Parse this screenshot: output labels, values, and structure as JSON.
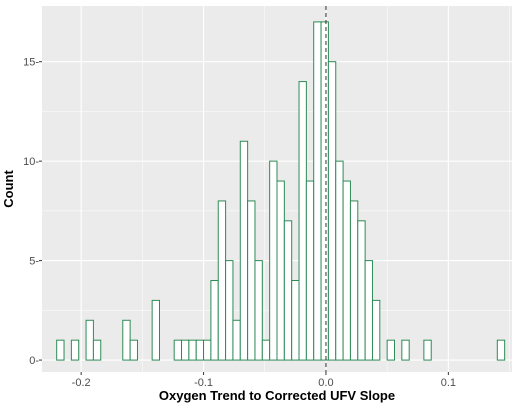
{
  "chart_data": {
    "type": "bar",
    "subtype": "histogram",
    "xlabel": "Oxygen Trend to Corrected UFV Slope",
    "ylabel": "Count",
    "xlim": [
      -0.232,
      0.152
    ],
    "ylim": [
      -0.6,
      17.8
    ],
    "x_ticks": [
      -0.2,
      -0.1,
      0.0,
      0.1
    ],
    "x_tick_labels": [
      "-0.2",
      "-0.1",
      "0.0",
      "0.1"
    ],
    "y_ticks": [
      0,
      5,
      10,
      15
    ],
    "y_tick_labels": [
      "0-",
      "5-",
      "10-",
      "15-"
    ],
    "grid": true,
    "reference_line": {
      "x": 0.0,
      "style": "dashed",
      "color": "#333333"
    },
    "bin_start": -0.22,
    "bin_width": 0.006,
    "values": [
      1,
      0,
      1,
      0,
      2,
      1,
      0,
      0,
      0,
      2,
      1,
      0,
      0,
      3,
      0,
      0,
      1,
      1,
      1,
      1,
      1,
      4,
      8,
      5,
      2,
      11,
      8,
      5,
      1,
      10,
      9,
      7,
      4,
      14,
      9,
      17,
      17,
      15,
      10,
      9,
      8,
      7,
      5,
      3,
      0,
      1,
      0,
      1,
      0,
      0,
      1,
      0,
      0,
      0,
      0,
      0,
      0,
      0,
      0,
      0,
      1
    ],
    "colors": {
      "panel": "#ebebeb",
      "grid": "#ffffff",
      "bar_fill": "#ffffff",
      "bar_stroke": "#2e8b57"
    }
  }
}
